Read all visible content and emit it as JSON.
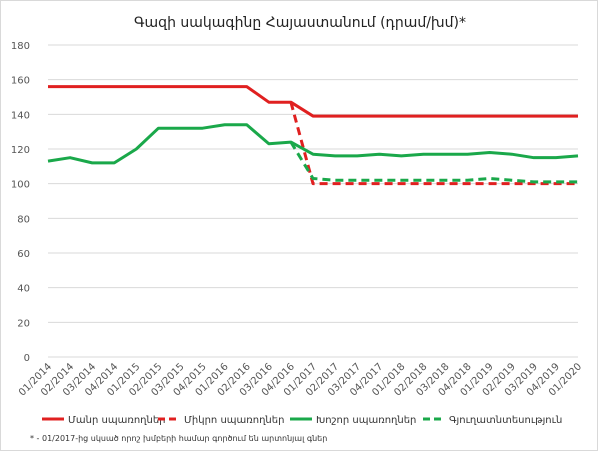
{
  "chart_data": {
    "type": "line",
    "title": "Գազի սակագինը Հայաստանում (դրամ/խմ)*",
    "xlabel": "",
    "ylabel": "",
    "ylim": [
      0,
      180
    ],
    "yticks": [
      0,
      20,
      40,
      60,
      80,
      100,
      120,
      140,
      160,
      180
    ],
    "grid": true,
    "legend_position": "bottom",
    "x": [
      "01/2014",
      "02/2014",
      "03/2014",
      "04/2014",
      "01/2015",
      "02/2015",
      "03/2015",
      "04/2015",
      "01/2016",
      "02/2016",
      "03/2016",
      "04/2016",
      "01/2017",
      "02/2017",
      "03/2017",
      "04/2017",
      "01/2018",
      "02/2018",
      "03/2018",
      "04/2018",
      "01/2019",
      "02/2019",
      "03/2019",
      "04/2019",
      "01/2020"
    ],
    "series": [
      {
        "name": "Մանր սպառողներ",
        "color": "#e02020",
        "dash": false,
        "values": [
          156,
          156,
          156,
          156,
          156,
          156,
          156,
          156,
          156,
          156,
          147,
          147,
          139,
          139,
          139,
          139,
          139,
          139,
          139,
          139,
          139,
          139,
          139,
          139,
          139
        ]
      },
      {
        "name": "Միկրո սպառողներ",
        "color": "#e02020",
        "dash": true,
        "values": [
          null,
          null,
          null,
          null,
          null,
          null,
          null,
          null,
          null,
          null,
          null,
          147,
          100,
          100,
          100,
          100,
          100,
          100,
          100,
          100,
          100,
          100,
          100,
          100,
          100
        ]
      },
      {
        "name": "Խոշոր սպառողներ",
        "color": "#1aa84a",
        "dash": false,
        "values": [
          113,
          115,
          112,
          112,
          120,
          132,
          132,
          132,
          134,
          134,
          123,
          124,
          117,
          116,
          116,
          117,
          116,
          117,
          117,
          117,
          118,
          117,
          115,
          115,
          116
        ]
      },
      {
        "name": "Գյուղատնտեսություն",
        "color": "#1aa84a",
        "dash": true,
        "values": [
          null,
          null,
          null,
          null,
          null,
          null,
          null,
          null,
          null,
          null,
          null,
          124,
          103,
          102,
          102,
          102,
          102,
          102,
          102,
          102,
          103,
          102,
          101,
          101,
          101
        ]
      }
    ]
  },
  "footnote": "* - 01/2017-ից սկսած որոշ խմբերի համար գործում են արտոնյալ գներ"
}
